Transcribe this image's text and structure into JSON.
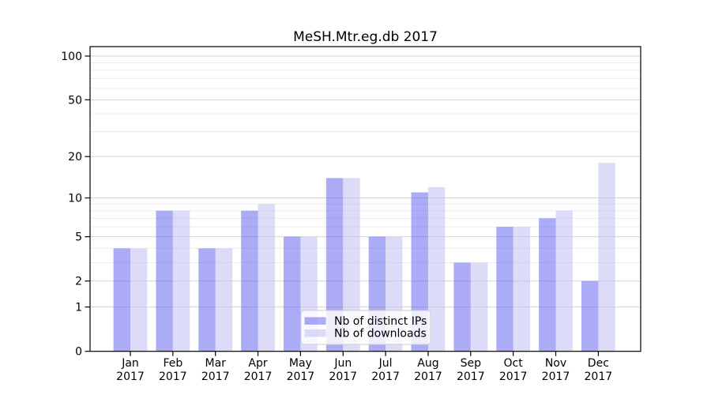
{
  "chart_data": {
    "type": "bar",
    "title": "MeSH.Mtr.eg.db 2017",
    "year": "2017",
    "months": [
      "Jan",
      "Feb",
      "Mar",
      "Apr",
      "May",
      "Jun",
      "Jul",
      "Aug",
      "Sep",
      "Oct",
      "Nov",
      "Dec"
    ],
    "series": [
      {
        "name": "Nb of distinct IPs",
        "slug": "distinct-ips",
        "color": "#6666ee",
        "values": [
          4,
          8,
          4,
          8,
          5,
          14,
          5,
          11,
          3,
          6,
          7,
          2
        ]
      },
      {
        "name": "Nb of downloads",
        "slug": "downloads",
        "color": "#c0c0f2",
        "values": [
          4,
          8,
          4,
          9,
          5,
          14,
          5,
          12,
          3,
          6,
          8,
          18
        ]
      }
    ],
    "yscale": "log10(value+1)",
    "yticks": [
      0,
      1,
      2,
      5,
      10,
      20,
      50,
      100
    ],
    "yticks_minor": [
      3,
      4,
      6,
      7,
      8,
      9,
      30,
      40,
      60,
      70,
      80,
      90
    ],
    "ylim": [
      0,
      116
    ],
    "grid": true,
    "legend_position": "lower center"
  },
  "colors": {
    "bar_distinct_ips": "#6666ee",
    "bar_downloads": "#c0c0f2",
    "grid_major": "#d4d4d4",
    "grid_minor": "#ececec",
    "axis": "#000000",
    "legend_border": "#cccccc"
  }
}
